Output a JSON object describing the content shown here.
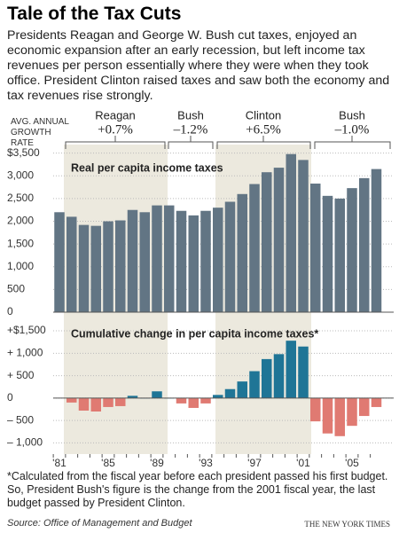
{
  "title": "Tale of the Tax Cuts",
  "intro": "Presidents Reagan and George W. Bush cut taxes, enjoyed an economic expansion after an early recession, but left income tax revenues per person essentially where they were when they took office. President Clinton raised taxes and saw both the economy and tax revenues rise strongly.",
  "growth_rate": {
    "label": "AVG. ANNUAL GROWTH RATE",
    "presidents": [
      {
        "name": "Reagan",
        "rate": "+0.7%"
      },
      {
        "name": "Bush",
        "rate": "–1.2%"
      },
      {
        "name": "Clinton",
        "rate": "+6.5%"
      },
      {
        "name": "Bush",
        "rate": "–1.0%"
      }
    ]
  },
  "chart_data": [
    {
      "type": "bar",
      "title": "Real per capita income taxes",
      "color": "#627584",
      "values": [
        2200,
        2100,
        1920,
        1900,
        2000,
        2020,
        2250,
        2200,
        2350,
        2350,
        2230,
        2130,
        2230,
        2300,
        2430,
        2600,
        2820,
        3080,
        3180,
        3480,
        3350,
        2830,
        2560,
        2500,
        2730,
        2950,
        3150
      ],
      "ylim": [
        0,
        3650
      ],
      "yticks": [
        0,
        500,
        {
          "value": 1000,
          "label": "1,000"
        },
        {
          "value": 1500,
          "label": "1,500"
        },
        {
          "value": 2000,
          "label": "2,000"
        },
        {
          "value": 2500,
          "label": "2,500"
        },
        {
          "value": 3000,
          "label": "3,000"
        },
        {
          "value": 3500,
          "label": "$3,500"
        }
      ],
      "grid": true
    },
    {
      "type": "bar",
      "title": "Cumulative change in per capita income taxes*",
      "colors": {
        "positive": "#1f7596",
        "negative": "#e07a72"
      },
      "categories": [
        "'81",
        null,
        null,
        null,
        "'85",
        null,
        null,
        null,
        "'89",
        null,
        null,
        null,
        "'93",
        null,
        null,
        null,
        "'97",
        null,
        null,
        null,
        "'01",
        null,
        null,
        null,
        "'05",
        null,
        null
      ],
      "values": [
        null,
        -100,
        -280,
        -300,
        -200,
        -180,
        50,
        0,
        150,
        0,
        -120,
        -220,
        -120,
        70,
        200,
        370,
        600,
        870,
        980,
        1280,
        1150,
        -520,
        -790,
        -850,
        -620,
        -400,
        -200
      ],
      "ylim": [
        -1250,
        1600
      ],
      "yticks": [
        {
          "value": -1000,
          "label": "– 1,000"
        },
        {
          "value": -500,
          "label": "– 500"
        },
        0,
        {
          "value": 500,
          "label": "+ 500"
        },
        {
          "value": 1000,
          "label": "+ 1,000"
        },
        {
          "value": 1500,
          "label": "+$1,500"
        }
      ],
      "grid": true
    }
  ],
  "footnote": "*Calculated from the fiscal year before each president passed his first budget. So, President Bush's figure is the change from the 2001 fiscal year, the last budget passed by President Clinton.",
  "source": "Source: Office of Management and Budget",
  "credit": "THE NEW YORK TIMES"
}
